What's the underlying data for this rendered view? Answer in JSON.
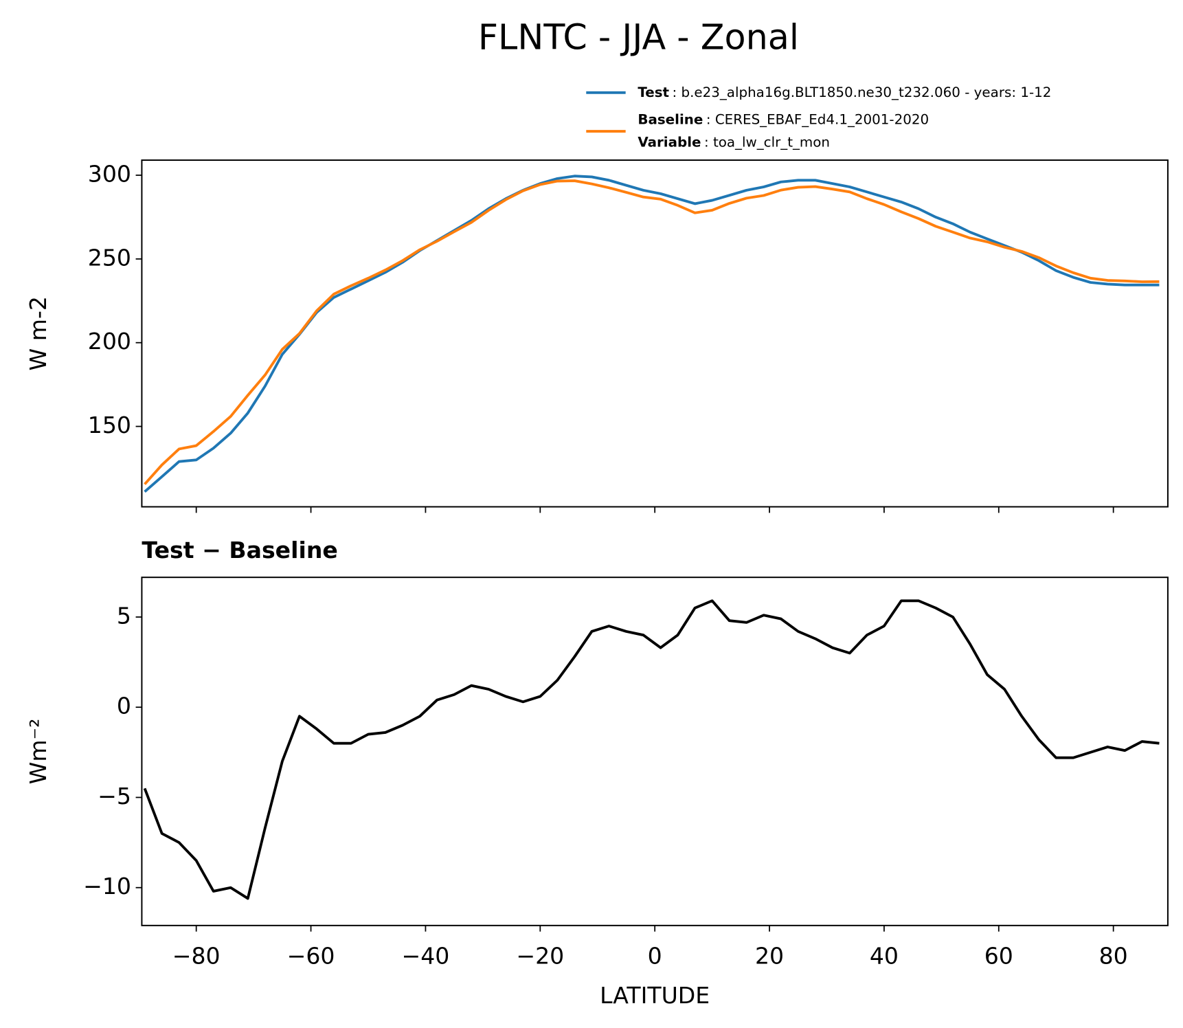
{
  "title": "FLNTC - JJA - Zonal",
  "chart_data": [
    {
      "type": "line",
      "ylabel": "W m-2",
      "x": [
        -89,
        -86,
        -83,
        -80,
        -77,
        -74,
        -71,
        -68,
        -65,
        -62,
        -59,
        -56,
        -53,
        -50,
        -47,
        -44,
        -41,
        -38,
        -35,
        -32,
        -29,
        -26,
        -23,
        -20,
        -17,
        -14,
        -11,
        -8,
        -5,
        -2,
        1,
        4,
        7,
        10,
        13,
        16,
        19,
        22,
        25,
        28,
        31,
        34,
        37,
        40,
        43,
        46,
        49,
        52,
        55,
        58,
        61,
        64,
        67,
        70,
        73,
        76,
        79,
        82,
        85,
        88
      ],
      "series": [
        {
          "name": "Test",
          "label": ": b.e23_alpha16g.BLT1850.ne30_t232.060 - years: 1-12",
          "color": "#1f77b4",
          "values": [
            111,
            120,
            129,
            130,
            137,
            146,
            158,
            174,
            193,
            205,
            218,
            227,
            232,
            237,
            242,
            248,
            255,
            261,
            267,
            273,
            280,
            286,
            291,
            295,
            298,
            299.5,
            299,
            297,
            294,
            291,
            289,
            286,
            283,
            285,
            288,
            291,
            293,
            296,
            297,
            297,
            295,
            293,
            290,
            287,
            284,
            280,
            275,
            271,
            266,
            262,
            258,
            254,
            249,
            243,
            239,
            236,
            235,
            234.5,
            234.5,
            234.5
          ]
        },
        {
          "name": "Baseline",
          "label": ": CERES_EBAF_Ed4.1_2001-2020",
          "variable": "Variable",
          "variable_label": ": toa_lw_clr_t_mon",
          "color": "#ff7f0e",
          "values": [
            115.5,
            127,
            136.5,
            138.5,
            147,
            156,
            168.6,
            180.7,
            196,
            205.5,
            219,
            229,
            234,
            238.5,
            243.4,
            249,
            255.5,
            260.6,
            266.3,
            271.8,
            279,
            285.4,
            290.7,
            294.4,
            296.5,
            296.7,
            294.8,
            292.5,
            289.8,
            287,
            285.7,
            282,
            277.5,
            279.1,
            283.2,
            286.3,
            287.9,
            291.1,
            292.8,
            293.2,
            291.7,
            290,
            286,
            282.5,
            278.1,
            274.1,
            269.5,
            266,
            262.5,
            260.2,
            257,
            254.5,
            250.8,
            245.8,
            241.8,
            238.5,
            237.2,
            236.9,
            236.4,
            236.5
          ]
        }
      ],
      "xlim": [
        -89.5,
        89.5
      ],
      "ylim": [
        102,
        309
      ],
      "xticks": [
        -80,
        -60,
        -40,
        -20,
        0,
        20,
        40,
        60,
        80
      ],
      "yticks": [
        150,
        200,
        250,
        300
      ]
    },
    {
      "type": "line",
      "title": "Test − Baseline",
      "xlabel": "LATITUDE",
      "ylabel": "Wm⁻²",
      "x": [
        -89,
        -86,
        -83,
        -80,
        -77,
        -74,
        -71,
        -68,
        -65,
        -62,
        -59,
        -56,
        -53,
        -50,
        -47,
        -44,
        -41,
        -38,
        -35,
        -32,
        -29,
        -26,
        -23,
        -20,
        -17,
        -14,
        -11,
        -8,
        -5,
        -2,
        1,
        4,
        7,
        10,
        13,
        16,
        19,
        22,
        25,
        28,
        31,
        34,
        37,
        40,
        43,
        46,
        49,
        52,
        55,
        58,
        61,
        64,
        67,
        70,
        73,
        76,
        79,
        82,
        85,
        88
      ],
      "series": [
        {
          "color": "#000000",
          "values": [
            -4.5,
            -7,
            -7.5,
            -8.5,
            -10.2,
            -10,
            -10.6,
            -6.7,
            -3,
            -0.5,
            -1.2,
            -2,
            -2,
            -1.5,
            -1.4,
            -1,
            -0.5,
            0.4,
            0.7,
            1.2,
            1,
            0.6,
            0.3,
            0.6,
            1.5,
            2.8,
            4.2,
            4.5,
            4.2,
            4,
            3.3,
            4,
            5.5,
            5.9,
            4.8,
            4.7,
            5.1,
            4.9,
            4.2,
            3.8,
            3.3,
            3,
            4,
            4.5,
            5.9,
            5.9,
            5.5,
            5,
            3.5,
            1.8,
            1,
            -0.5,
            -1.8,
            -2.8,
            -2.8,
            -2.5,
            -2.2,
            -2.4,
            -1.9,
            -2
          ]
        }
      ],
      "xlim": [
        -89.5,
        89.5
      ],
      "ylim": [
        -12.1,
        7.2
      ],
      "xticks": [
        {
          "value": -80,
          "label": "−80"
        },
        {
          "value": -60,
          "label": "−60"
        },
        {
          "value": -40,
          "label": "−40"
        },
        {
          "value": -20,
          "label": "−20"
        },
        0,
        20,
        40,
        60,
        80
      ],
      "yticks": [
        {
          "value": -10,
          "label": "−10"
        },
        {
          "value": -5,
          "label": "−5"
        },
        0,
        5
      ]
    }
  ]
}
